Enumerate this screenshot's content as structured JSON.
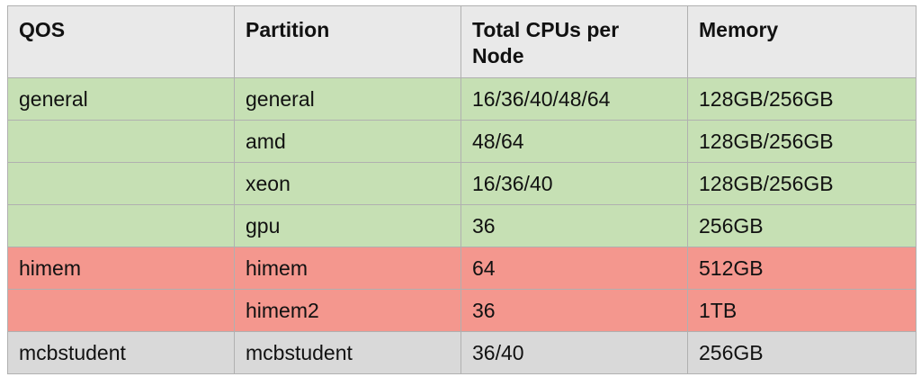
{
  "table": {
    "headers": [
      "QOS",
      "Partition",
      "Total CPUs per Node",
      "Memory"
    ],
    "rows": [
      {
        "group": "general",
        "cells": [
          "general",
          "general",
          "16/36/40/48/64",
          "128GB/256GB"
        ]
      },
      {
        "group": "general",
        "cells": [
          "",
          "amd",
          "48/64",
          "128GB/256GB"
        ]
      },
      {
        "group": "general",
        "cells": [
          "",
          "xeon",
          "16/36/40",
          "128GB/256GB"
        ]
      },
      {
        "group": "general",
        "cells": [
          "",
          "gpu",
          "36",
          "256GB"
        ]
      },
      {
        "group": "himem",
        "cells": [
          "himem",
          "himem",
          "64",
          "512GB"
        ]
      },
      {
        "group": "himem",
        "cells": [
          "",
          "himem2",
          "36",
          "1TB"
        ]
      },
      {
        "group": "student",
        "cells": [
          "mcbstudent",
          "mcbstudent",
          "36/40",
          "256GB"
        ]
      }
    ]
  },
  "colors": {
    "header_bg": "#e9e9e9",
    "general_bg": "#c6e0b4",
    "himem_bg": "#f4978e",
    "student_bg": "#d9d9d9",
    "border": "#b0b0b0"
  }
}
